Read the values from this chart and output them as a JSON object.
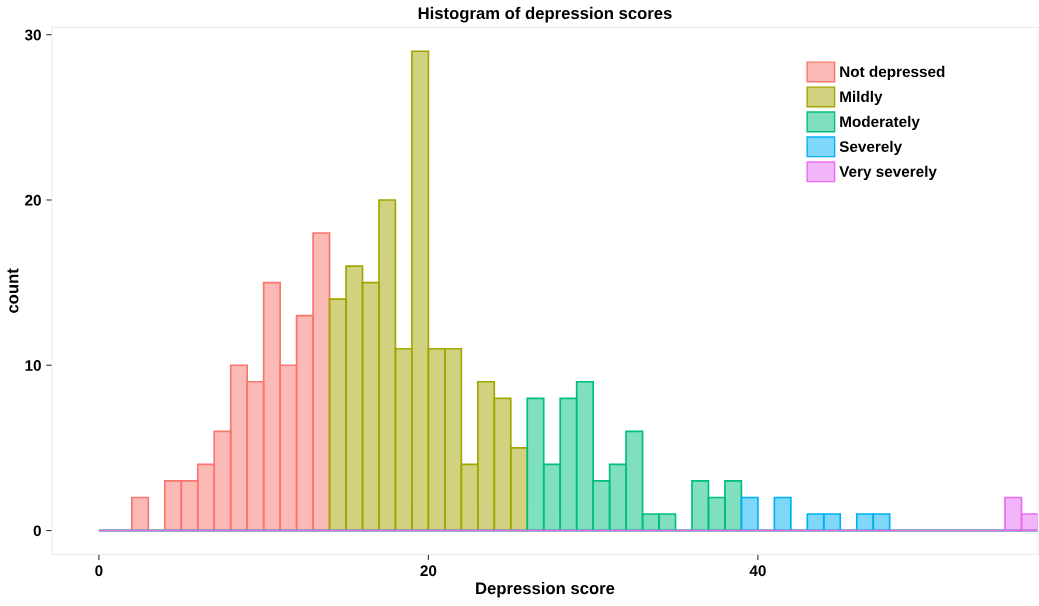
{
  "chart_data": {
    "type": "histogram",
    "title": "Histogram of depression scores",
    "xlabel": "Depression score",
    "ylabel": "count",
    "bins": [
      0,
      1,
      2,
      3,
      4,
      5,
      6,
      7,
      8,
      9,
      10,
      11,
      12,
      13,
      14,
      15,
      16,
      17,
      18,
      19,
      20,
      21,
      22,
      23,
      24,
      25,
      26,
      27,
      28,
      29,
      30,
      31,
      32,
      33,
      34,
      35,
      36,
      37,
      38,
      39,
      40,
      41,
      42,
      43,
      44,
      45,
      46,
      47,
      48,
      49,
      50,
      51,
      52,
      53,
      54,
      55,
      56,
      57
    ],
    "series": [
      {
        "name": "Not depressed",
        "color": "#F8766D",
        "values": [
          0,
          0,
          2,
          0,
          3,
          3,
          4,
          6,
          10,
          9,
          15,
          10,
          13,
          18,
          0,
          0,
          0,
          0,
          0,
          0,
          0,
          0,
          0,
          0,
          0,
          0,
          0,
          0,
          0,
          0,
          0,
          0,
          0,
          0,
          0,
          0,
          0,
          0,
          0,
          0,
          0,
          0,
          0,
          0,
          0,
          0,
          0,
          0,
          0,
          0,
          0,
          0,
          0,
          0,
          0,
          0,
          0
        ]
      },
      {
        "name": "Mildly",
        "color": "#A3A500",
        "values": [
          0,
          0,
          0,
          0,
          0,
          0,
          0,
          0,
          0,
          0,
          0,
          0,
          0,
          0,
          14,
          16,
          15,
          20,
          11,
          29,
          11,
          11,
          4,
          9,
          8,
          5,
          0,
          0,
          0,
          0,
          0,
          0,
          0,
          0,
          0,
          0,
          0,
          0,
          0,
          0,
          0,
          0,
          0,
          0,
          0,
          0,
          0,
          0,
          0,
          0,
          0,
          0,
          0,
          0,
          0,
          0,
          0
        ]
      },
      {
        "name": "Moderately",
        "color": "#00BF7D",
        "values": [
          0,
          0,
          0,
          0,
          0,
          0,
          0,
          0,
          0,
          0,
          0,
          0,
          0,
          0,
          0,
          0,
          0,
          0,
          0,
          0,
          0,
          0,
          0,
          0,
          0,
          0,
          8,
          4,
          8,
          9,
          3,
          4,
          6,
          1,
          1,
          0,
          3,
          2,
          3,
          0,
          0,
          0,
          0,
          0,
          0,
          0,
          0,
          0,
          0,
          0,
          0,
          0,
          0,
          0,
          0,
          0,
          0
        ]
      },
      {
        "name": "Severely",
        "color": "#00B0F6",
        "values": [
          0,
          0,
          0,
          0,
          0,
          0,
          0,
          0,
          0,
          0,
          0,
          0,
          0,
          0,
          0,
          0,
          0,
          0,
          0,
          0,
          0,
          0,
          0,
          0,
          0,
          0,
          0,
          0,
          0,
          0,
          0,
          0,
          0,
          0,
          0,
          0,
          0,
          0,
          0,
          2,
          0,
          2,
          0,
          1,
          1,
          0,
          1,
          1,
          0,
          0,
          0,
          0,
          0,
          0,
          0,
          0,
          0
        ]
      },
      {
        "name": "Very severely",
        "color": "#E76BF3",
        "values": [
          0,
          0,
          0,
          0,
          0,
          0,
          0,
          0,
          0,
          0,
          0,
          0,
          0,
          0,
          0,
          0,
          0,
          0,
          0,
          0,
          0,
          0,
          0,
          0,
          0,
          0,
          0,
          0,
          0,
          0,
          0,
          0,
          0,
          0,
          0,
          0,
          0,
          0,
          0,
          0,
          0,
          0,
          0,
          0,
          0,
          0,
          0,
          0,
          0,
          0,
          0,
          0,
          0,
          0,
          0,
          2,
          1
        ]
      }
    ],
    "xlim": [
      -2.85,
      57
    ],
    "ylim": [
      -1.45,
      30.45
    ],
    "xticks": [
      0,
      20,
      40
    ],
    "yticks": [
      0,
      10,
      20,
      30
    ],
    "grid": false,
    "legend": "top right"
  }
}
